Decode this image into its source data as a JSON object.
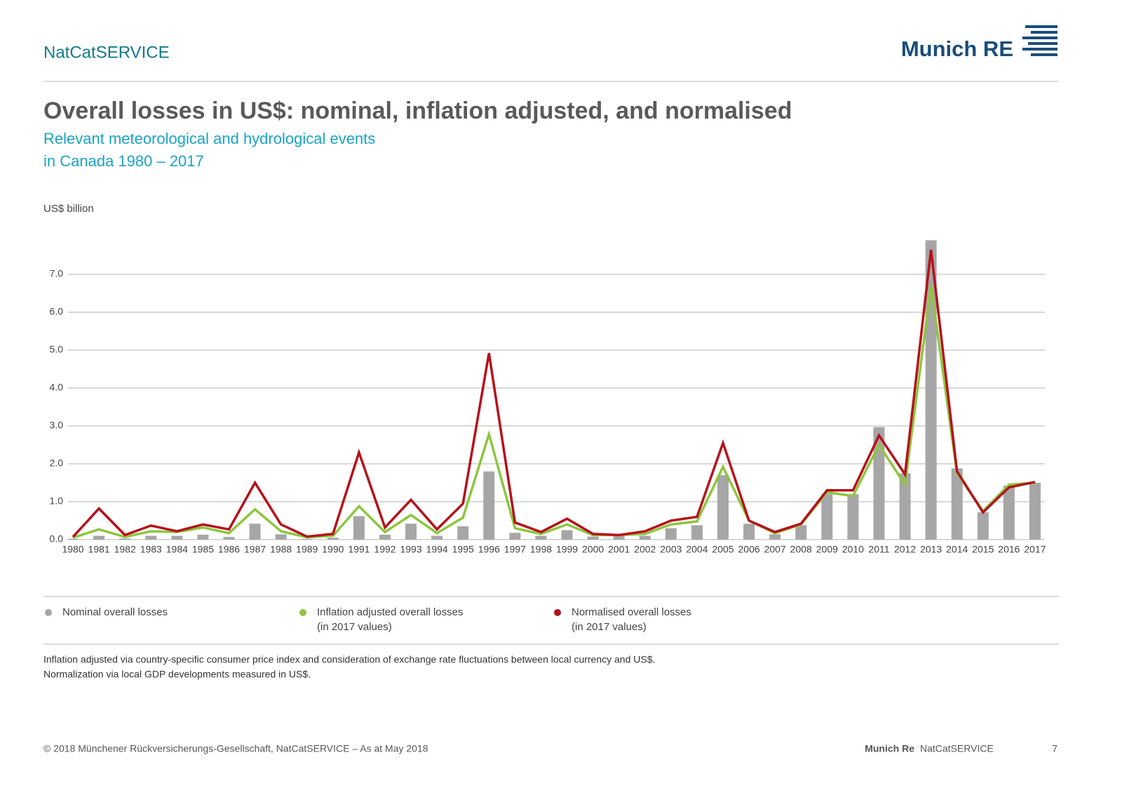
{
  "header": {
    "brand": "NatCatSERVICE",
    "logo": "Munich RE"
  },
  "chart_data": {
    "type": "bar",
    "title": "Overall losses in US$: nominal, inflation adjusted, and normalised",
    "subtitle": [
      "Relevant meteorological and hydrological events",
      "in Canada 1980 – 2017"
    ],
    "y_label": "US$ billion",
    "categories": [
      "1980",
      "1981",
      "1982",
      "1983",
      "1984",
      "1985",
      "1986",
      "1987",
      "1988",
      "1989",
      "1990",
      "1991",
      "1992",
      "1993",
      "1994",
      "1995",
      "1996",
      "1997",
      "1998",
      "1999",
      "2000",
      "2001",
      "2002",
      "2003",
      "2004",
      "2005",
      "2006",
      "2007",
      "2008",
      "2009",
      "2010",
      "2011",
      "2012",
      "2013",
      "2014",
      "2015",
      "2016",
      "2017"
    ],
    "series": [
      {
        "name": "Nominal overall losses",
        "type": "bar",
        "color": "#a6a6a6",
        "values": [
          0.02,
          0.1,
          0.03,
          0.1,
          0.1,
          0.13,
          0.07,
          0.42,
          0.14,
          0.02,
          0.05,
          0.62,
          0.13,
          0.42,
          0.1,
          0.35,
          1.8,
          0.18,
          0.1,
          0.25,
          0.08,
          0.1,
          0.1,
          0.3,
          0.38,
          1.7,
          0.42,
          0.14,
          0.38,
          1.2,
          1.2,
          2.97,
          1.75,
          7.9,
          1.88,
          0.72,
          1.42,
          1.5
        ]
      },
      {
        "name": "Inflation adjusted overall losses",
        "name_note": "(in 2017 values)",
        "type": "line",
        "color": "#8dc63f",
        "values": [
          0.05,
          0.27,
          0.07,
          0.22,
          0.2,
          0.32,
          0.17,
          0.8,
          0.22,
          0.06,
          0.1,
          0.88,
          0.2,
          0.65,
          0.17,
          0.58,
          2.78,
          0.3,
          0.15,
          0.4,
          0.12,
          0.12,
          0.15,
          0.4,
          0.48,
          1.92,
          0.5,
          0.17,
          0.4,
          1.25,
          1.15,
          2.5,
          1.45,
          6.7,
          1.75,
          0.75,
          1.45,
          1.5
        ]
      },
      {
        "name": "Normalised overall losses",
        "name_note": "(in 2017 values)",
        "type": "line",
        "color": "#b5121b",
        "values": [
          0.07,
          0.82,
          0.12,
          0.37,
          0.22,
          0.4,
          0.27,
          1.5,
          0.4,
          0.08,
          0.15,
          2.3,
          0.32,
          1.05,
          0.27,
          0.95,
          4.92,
          0.45,
          0.2,
          0.55,
          0.15,
          0.12,
          0.22,
          0.5,
          0.6,
          2.55,
          0.5,
          0.2,
          0.42,
          1.3,
          1.3,
          2.75,
          1.72,
          7.65,
          1.8,
          0.72,
          1.38,
          1.52
        ]
      }
    ],
    "ylim": [
      0,
      8
    ],
    "yticks": [
      {
        "value": 0,
        "label": "0.0"
      },
      {
        "value": 1,
        "label": "1.0"
      },
      {
        "value": 2,
        "label": "2.0"
      },
      {
        "value": 3,
        "label": "3.0"
      },
      {
        "value": 4,
        "label": "4.0"
      },
      {
        "value": 5,
        "label": "5.0"
      },
      {
        "value": 6,
        "label": "6.0"
      },
      {
        "value": 7,
        "label": "7.0"
      }
    ],
    "grid": true
  },
  "notes": [
    "Inflation adjusted via country-specific consumer price index and consideration of exchange rate fluctuations between local currency and US$.",
    "Normalization via local GDP developments measured in US$."
  ],
  "footer": {
    "copyright": "© 2018 Münchener Rückversicherungs-Gesellschaft, NatCatSERVICE – As at May 2018",
    "brand": "Munich Re",
    "service": "NatCatSERVICE",
    "page": "7"
  }
}
